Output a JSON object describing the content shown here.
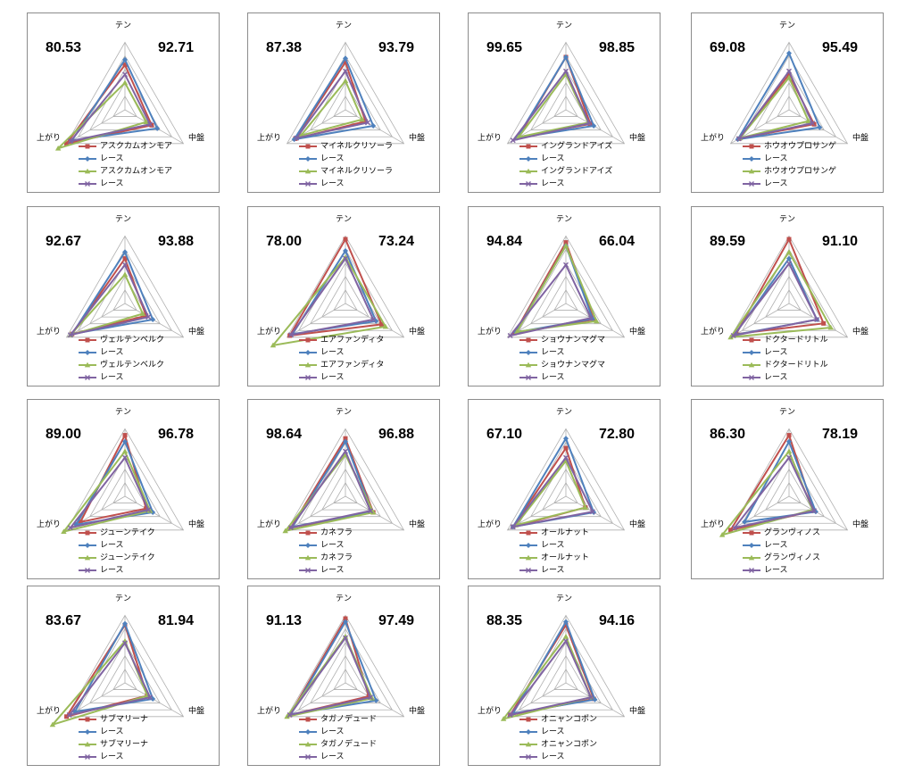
{
  "axes": {
    "top": "テン",
    "right": "中盤",
    "left": "上がり"
  },
  "colors": {
    "horse": "#c0504d",
    "race": "#4f81bd",
    "horse2": "#9bbb59",
    "race2": "#8064a2"
  },
  "chart_data": [
    {
      "type": "radar",
      "left_score": "80.53",
      "right_score": "92.71",
      "series": [
        {
          "name": "アスクカムオンモア",
          "values": [
            0.7,
            0.48,
            1.05
          ]
        },
        {
          "name": "レース",
          "values": [
            0.78,
            0.58,
            0.95
          ]
        },
        {
          "name": "アスクカムオンモア",
          "values": [
            0.42,
            0.38,
            1.2
          ]
        },
        {
          "name": "レース",
          "values": [
            0.55,
            0.45,
            0.98
          ]
        }
      ]
    },
    {
      "type": "radar",
      "left_score": "87.38",
      "right_score": "93.79",
      "series": [
        {
          "name": "マイネルクリソーラ",
          "values": [
            0.74,
            0.36,
            0.9
          ]
        },
        {
          "name": "レース",
          "values": [
            0.8,
            0.5,
            0.92
          ]
        },
        {
          "name": "マイネルクリソーラ",
          "values": [
            0.45,
            0.3,
            0.8
          ]
        },
        {
          "name": "レース",
          "values": [
            0.6,
            0.4,
            0.88
          ]
        }
      ]
    },
    {
      "type": "radar",
      "left_score": "99.65",
      "right_score": "98.85",
      "series": [
        {
          "name": "イングランドアイズ",
          "values": [
            0.82,
            0.44,
            0.85
          ]
        },
        {
          "name": "レース",
          "values": [
            0.82,
            0.5,
            0.88
          ]
        },
        {
          "name": "イングランドアイズ",
          "values": [
            0.55,
            0.4,
            0.85
          ]
        },
        {
          "name": "レース",
          "values": [
            0.6,
            0.42,
            0.95
          ]
        }
      ]
    },
    {
      "type": "radar",
      "left_score": "69.08",
      "right_score": "95.49",
      "series": [
        {
          "name": "ホウオウプロサンゲ",
          "values": [
            0.55,
            0.45,
            0.9
          ]
        },
        {
          "name": "レース",
          "values": [
            0.88,
            0.55,
            0.92
          ]
        },
        {
          "name": "ホウオウプロサンゲ",
          "values": [
            0.5,
            0.35,
            0.88
          ]
        },
        {
          "name": "レース",
          "values": [
            0.6,
            0.42,
            0.9
          ]
        }
      ]
    },
    {
      "type": "radar",
      "left_score": "92.67",
      "right_score": "93.88",
      "series": [
        {
          "name": "ヴェルテンベルク",
          "values": [
            0.7,
            0.38,
            0.95
          ]
        },
        {
          "name": "レース",
          "values": [
            0.8,
            0.5,
            0.95
          ]
        },
        {
          "name": "ヴェルテンベルク",
          "values": [
            0.45,
            0.32,
            0.98
          ]
        },
        {
          "name": "レース",
          "values": [
            0.6,
            0.42,
            0.98
          ]
        }
      ]
    },
    {
      "type": "radar",
      "left_score": "78.00",
      "right_score": "73.24",
      "series": [
        {
          "name": "エアファンディタ",
          "values": [
            1.0,
            0.65,
            1.0
          ]
        },
        {
          "name": "レース",
          "values": [
            0.82,
            0.55,
            0.95
          ]
        },
        {
          "name": "エアファンディタ",
          "values": [
            0.72,
            0.72,
            1.3
          ]
        },
        {
          "name": "レース",
          "values": [
            0.7,
            0.5,
            0.98
          ]
        }
      ]
    },
    {
      "type": "radar",
      "left_score": "94.84",
      "right_score": "66.04",
      "series": [
        {
          "name": "ショウナンマグマ",
          "values": [
            0.95,
            0.5,
            0.92
          ]
        },
        {
          "name": "レース",
          "values": [
            0.9,
            0.48,
            0.9
          ]
        },
        {
          "name": "ショウナンマグマ",
          "values": [
            0.9,
            0.55,
            0.88
          ]
        },
        {
          "name": "レース",
          "values": [
            0.6,
            0.45,
            1.0
          ]
        }
      ]
    },
    {
      "type": "radar",
      "left_score": "89.59",
      "right_score": "91.10",
      "series": [
        {
          "name": "ドクタードリトル",
          "values": [
            1.0,
            0.62,
            0.95
          ]
        },
        {
          "name": "レース",
          "values": [
            0.7,
            0.5,
            0.98
          ]
        },
        {
          "name": "ドクタードリトル",
          "values": [
            0.8,
            0.75,
            1.05
          ]
        },
        {
          "name": "レース",
          "values": [
            0.62,
            0.5,
            1.0
          ]
        }
      ]
    },
    {
      "type": "radar",
      "left_score": "89.00",
      "right_score": "96.78",
      "series": [
        {
          "name": "ジューンテイク",
          "values": [
            0.95,
            0.38,
            0.8
          ]
        },
        {
          "name": "レース",
          "values": [
            0.85,
            0.5,
            0.88
          ]
        },
        {
          "name": "ジューンテイク",
          "values": [
            0.7,
            0.45,
            1.1
          ]
        },
        {
          "name": "レース",
          "values": [
            0.6,
            0.42,
            0.98
          ]
        }
      ]
    },
    {
      "type": "radar",
      "left_score": "98.64",
      "right_score": "96.88",
      "series": [
        {
          "name": "カネフラ",
          "values": [
            0.9,
            0.5,
            0.98
          ]
        },
        {
          "name": "レース",
          "values": [
            0.85,
            0.48,
            0.95
          ]
        },
        {
          "name": "カネフラ",
          "values": [
            0.65,
            0.5,
            1.08
          ]
        },
        {
          "name": "レース",
          "values": [
            0.7,
            0.45,
            0.98
          ]
        }
      ]
    },
    {
      "type": "radar",
      "left_score": "67.10",
      "right_score": "72.80",
      "series": [
        {
          "name": "オールナット",
          "values": [
            0.75,
            0.35,
            0.95
          ]
        },
        {
          "name": "レース",
          "values": [
            0.9,
            0.5,
            0.95
          ]
        },
        {
          "name": "オールナット",
          "values": [
            0.55,
            0.35,
            0.9
          ]
        },
        {
          "name": "レース",
          "values": [
            0.6,
            0.48,
            0.95
          ]
        }
      ]
    },
    {
      "type": "radar",
      "left_score": "86.30",
      "right_score": "78.19",
      "series": [
        {
          "name": "グランヴィノス",
          "values": [
            0.95,
            0.45,
            1.05
          ]
        },
        {
          "name": "レース",
          "values": [
            0.85,
            0.48,
            0.8
          ]
        },
        {
          "name": "グランヴィノス",
          "values": [
            0.7,
            0.42,
            1.2
          ]
        },
        {
          "name": "レース",
          "values": [
            0.6,
            0.45,
            0.98
          ]
        }
      ]
    },
    {
      "type": "radar",
      "left_score": "83.67",
      "right_score": "81.94",
      "series": [
        {
          "name": "サブマリーナ",
          "values": [
            0.9,
            0.4,
            1.05
          ]
        },
        {
          "name": "レース",
          "values": [
            0.92,
            0.5,
            0.9
          ]
        },
        {
          "name": "サブマリーナ",
          "values": [
            0.65,
            0.4,
            1.3
          ]
        },
        {
          "name": "レース",
          "values": [
            0.62,
            0.45,
            1.0
          ]
        }
      ]
    },
    {
      "type": "radar",
      "left_score": "91.13",
      "right_score": "97.49",
      "series": [
        {
          "name": "タガノデュード",
          "values": [
            1.0,
            0.42,
            1.0
          ]
        },
        {
          "name": "レース",
          "values": [
            0.95,
            0.55,
            0.98
          ]
        },
        {
          "name": "タガノデュード",
          "values": [
            0.72,
            0.48,
            1.05
          ]
        },
        {
          "name": "レース",
          "values": [
            0.7,
            0.45,
            1.0
          ]
        }
      ]
    },
    {
      "type": "radar",
      "left_score": "88.35",
      "right_score": "94.16",
      "series": [
        {
          "name": "オニャンコポン",
          "values": [
            0.9,
            0.5,
            1.0
          ]
        },
        {
          "name": "レース",
          "values": [
            0.95,
            0.52,
            0.95
          ]
        },
        {
          "name": "オニャンコポン",
          "values": [
            0.72,
            0.45,
            1.12
          ]
        },
        {
          "name": "レース",
          "values": [
            0.65,
            0.45,
            1.0
          ]
        }
      ]
    }
  ]
}
